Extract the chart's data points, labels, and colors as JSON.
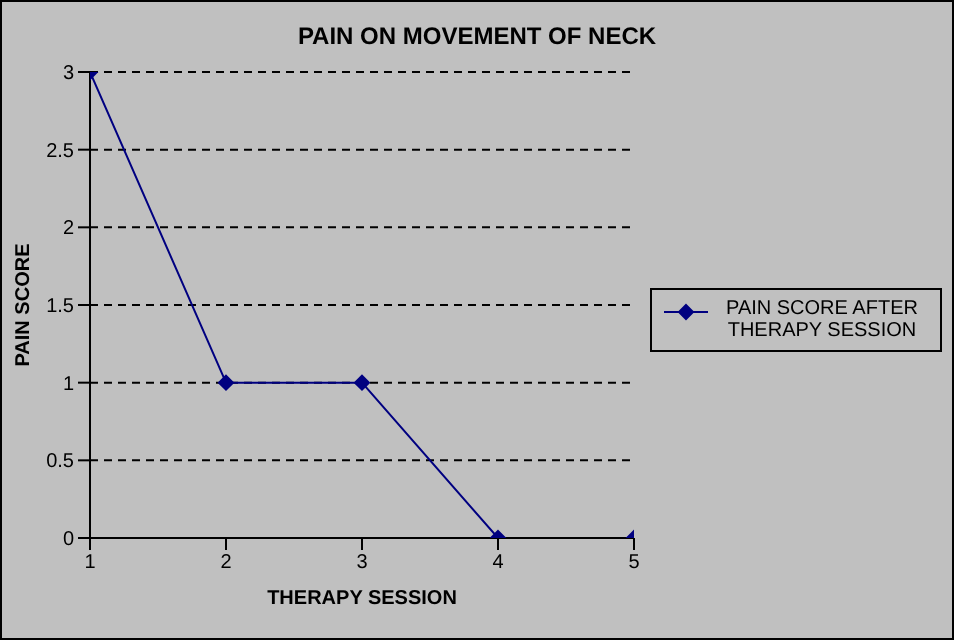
{
  "chart_data": {
    "type": "line",
    "title": "PAIN ON MOVEMENT OF NECK",
    "xlabel": "THERAPY SESSION",
    "ylabel": "PAIN SCORE",
    "x": [
      1,
      2,
      3,
      4,
      5
    ],
    "series": [
      {
        "name": "PAIN SCORE AFTER THERAPY SESSION",
        "color": "#000080",
        "values": [
          3,
          1,
          1,
          0,
          0
        ]
      }
    ],
    "xlim": [
      1,
      5
    ],
    "xticks": [
      1,
      2,
      3,
      4,
      5
    ],
    "ylim": [
      0,
      3
    ],
    "yticks": [
      0,
      0.5,
      1,
      1.5,
      2,
      2.5,
      3
    ],
    "grid": "y",
    "legend": "right",
    "marker": "diamond",
    "line_style": "solid"
  }
}
